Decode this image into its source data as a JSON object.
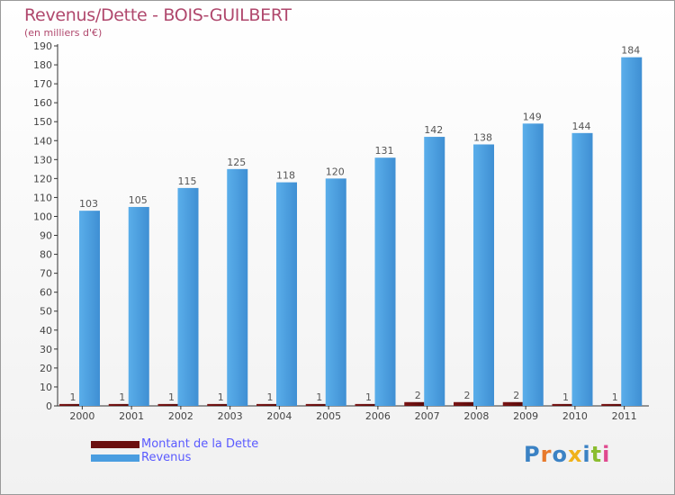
{
  "title": "Revenus/Dette - BOIS-GUILBERT",
  "subtitle": "(en milliers d'€)",
  "logo_text": "Proxiti",
  "chart_data": {
    "type": "bar",
    "categories": [
      "2000",
      "2001",
      "2002",
      "2003",
      "2004",
      "2005",
      "2006",
      "2007",
      "2008",
      "2009",
      "2010",
      "2011"
    ],
    "series": [
      {
        "name": "Montant de la Dette",
        "color": "#6b0f0f",
        "values": [
          1,
          1,
          1,
          1,
          1,
          1,
          1,
          2,
          2,
          2,
          1,
          1
        ]
      },
      {
        "name": "Revenus",
        "color": "#4a9de0",
        "values": [
          103,
          105,
          115,
          125,
          118,
          120,
          131,
          142,
          138,
          149,
          144,
          184
        ]
      }
    ],
    "ylim": [
      0,
      190
    ],
    "yticks": [
      0,
      10,
      20,
      30,
      40,
      50,
      60,
      70,
      80,
      90,
      100,
      110,
      120,
      130,
      140,
      150,
      160,
      170,
      180,
      190
    ],
    "grid": false,
    "legend": "bottom-left"
  }
}
